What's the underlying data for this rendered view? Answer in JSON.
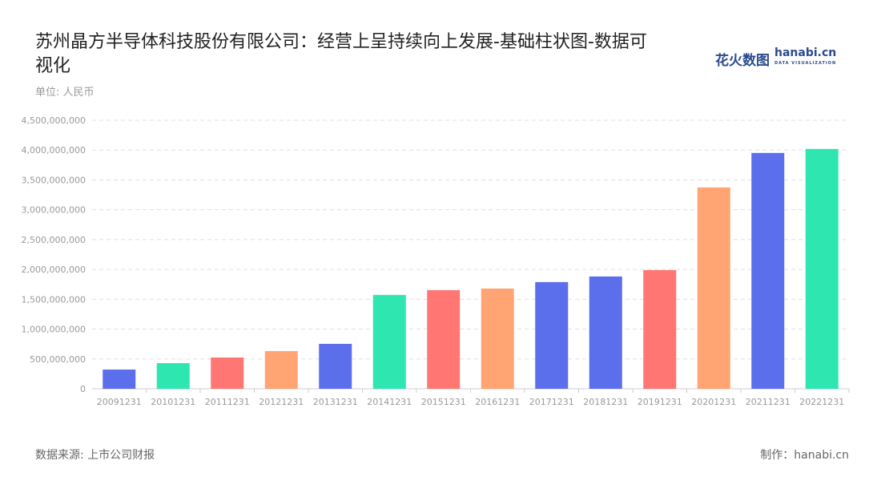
{
  "header": {
    "title": "苏州晶方半导体科技股份有限公司：经营上呈持续向上发展-基础柱状图-数据可视化",
    "unit": "单位: 人民币"
  },
  "logo": {
    "cn": "花火数图",
    "en": "hanabi.cn",
    "tagline": "DATA VISUALIZATION"
  },
  "footer": {
    "source": "数据来源: 上市公司财报",
    "maker": "制作：hanabi.cn"
  },
  "chart_data": {
    "type": "bar",
    "categories": [
      "20091231",
      "20101231",
      "20111231",
      "20121231",
      "20131231",
      "20141231",
      "20151231",
      "20161231",
      "20171231",
      "20181231",
      "20191231",
      "20201231",
      "20211231",
      "20221231"
    ],
    "values": [
      322000000,
      430000000,
      524000000,
      632000000,
      753000000,
      1573000000,
      1653000000,
      1680000000,
      1788000000,
      1882000000,
      1989000000,
      3374000000,
      3952000000,
      4019000000
    ],
    "colors": [
      "#5b6fec",
      "#2ee6b0",
      "#ff7672",
      "#ffa472",
      "#5b6fec",
      "#2ee6b0",
      "#ff7672",
      "#ffa472",
      "#5b6fec",
      "#5b6fec",
      "#ff7672",
      "#ffa472",
      "#5b6fec",
      "#2ee6b0"
    ],
    "yticks": [
      "0",
      "500,000,000",
      "1,000,000,000",
      "1,500,000,000",
      "2,000,000,000",
      "2,500,000,000",
      "3,000,000,000",
      "3,500,000,000",
      "4,000,000,000",
      "4,500,000,000"
    ],
    "ylim": [
      0,
      4500000000
    ],
    "grid": true,
    "title": "苏州晶方半导体科技股份有限公司：经营上呈持续向上发展-基础柱状图-数据可视化",
    "ylabel": "单位: 人民币"
  }
}
